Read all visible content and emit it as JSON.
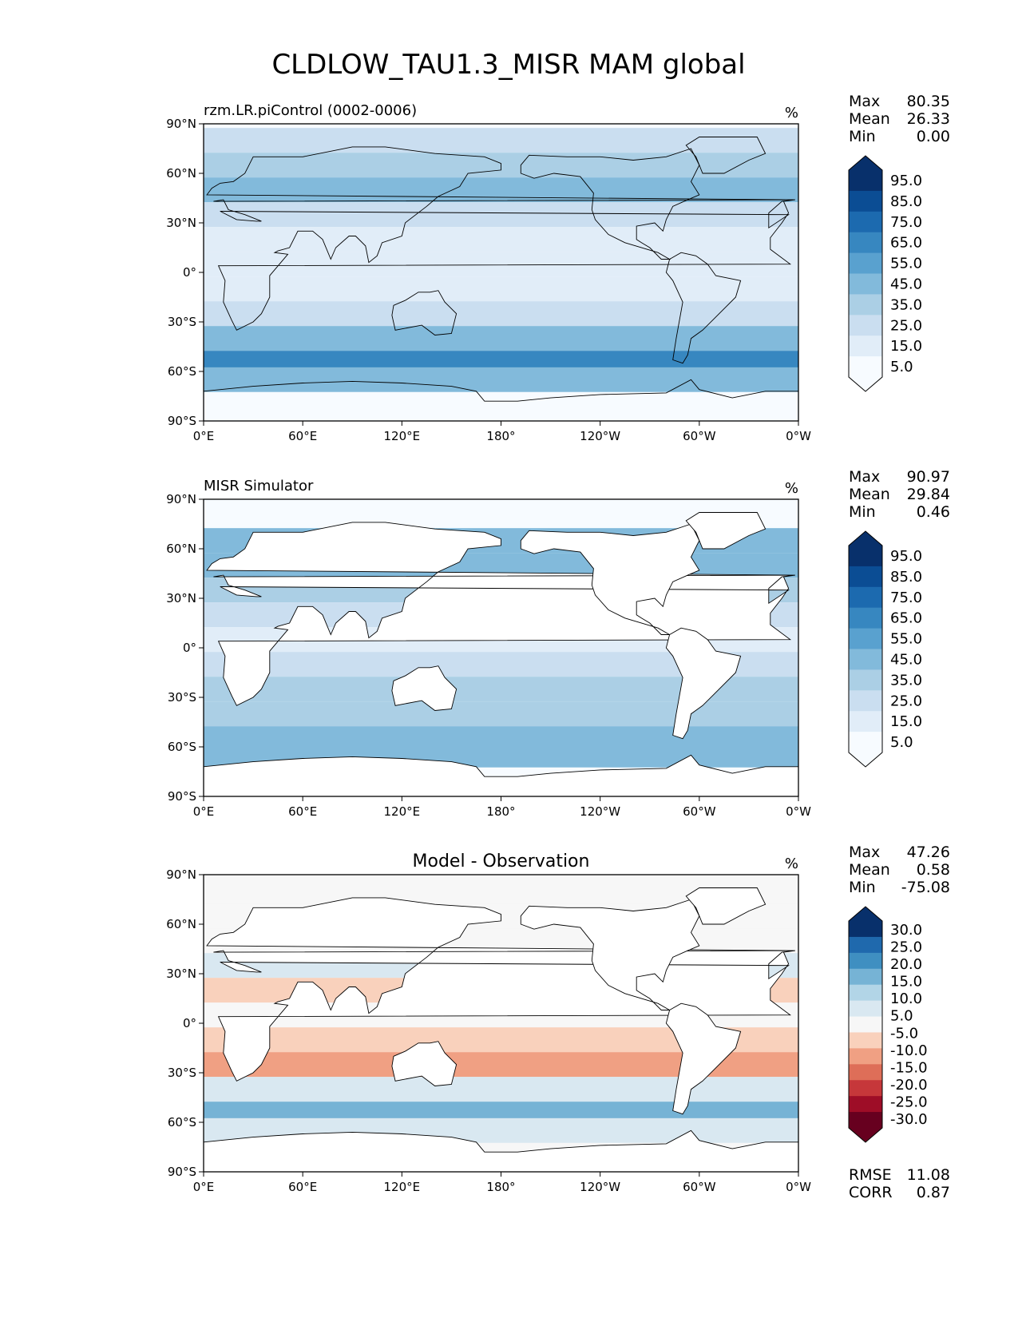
{
  "figure_title": "CLDLOW_TAU1.3_MISR MAM global",
  "colors": {
    "blues": [
      "#f7fbff",
      "#e1edf8",
      "#cadef0",
      "#abcfe5",
      "#82badb",
      "#59a1cf",
      "#3787c0",
      "#1c6aaf",
      "#0b4d94",
      "#08306b"
    ],
    "diff": [
      "#67001f",
      "#9e0d27",
      "#c6373a",
      "#de6e58",
      "#f0a083",
      "#f9d1bc",
      "#f7f7f7",
      "#d9e8f1",
      "#b2d5e7",
      "#76b3d5",
      "#3f8fc1",
      "#1f69ad",
      "#08306b"
    ],
    "land_line": "#000000"
  },
  "chart_data": [
    {
      "type": "heatmap",
      "panel_title": "rzm.LR.piControl (0002-0006)",
      "units": "%",
      "stats": [
        {
          "label": "Max",
          "value": "80.35"
        },
        {
          "label": "Mean",
          "value": "26.33"
        },
        {
          "label": "Min",
          "value": "0.00"
        }
      ],
      "colorbar_levels": [
        "95.0",
        "85.0",
        "75.0",
        "65.0",
        "55.0",
        "45.0",
        "35.0",
        "25.0",
        "15.0",
        "5.0"
      ],
      "x_ticks": [
        "0°E",
        "60°E",
        "120°E",
        "180°",
        "120°W",
        "60°W",
        "0°W"
      ],
      "y_ticks": [
        "90°N",
        "60°N",
        "30°N",
        "0°",
        "30°S",
        "60°S",
        "90°S"
      ],
      "xlim": [
        0,
        360
      ],
      "ylim": [
        -90,
        90
      ],
      "zones": [
        {
          "lat": 80,
          "value": 28
        },
        {
          "lat": 65,
          "value": 38
        },
        {
          "lat": 50,
          "value": 42
        },
        {
          "lat": 35,
          "value": 22
        },
        {
          "lat": 20,
          "value": 14
        },
        {
          "lat": 5,
          "value": 12
        },
        {
          "lat": -10,
          "value": 16
        },
        {
          "lat": -25,
          "value": 20
        },
        {
          "lat": -40,
          "value": 45
        },
        {
          "lat": -55,
          "value": 62
        },
        {
          "lat": -65,
          "value": 48
        },
        {
          "lat": -80,
          "value": 3
        }
      ]
    },
    {
      "type": "heatmap",
      "panel_title": "MISR Simulator",
      "units": "%",
      "stats": [
        {
          "label": "Max",
          "value": "90.97"
        },
        {
          "label": "Mean",
          "value": "29.84"
        },
        {
          "label": "Min",
          "value": "0.46"
        }
      ],
      "colorbar_levels": [
        "95.0",
        "85.0",
        "75.0",
        "65.0",
        "55.0",
        "45.0",
        "35.0",
        "25.0",
        "15.0",
        "5.0"
      ],
      "x_ticks": [
        "0°E",
        "60°E",
        "120°E",
        "180°",
        "120°W",
        "60°W",
        "0°W"
      ],
      "y_ticks": [
        "90°N",
        "60°N",
        "30°N",
        "0°",
        "30°S",
        "60°S",
        "90°S"
      ],
      "xlim": [
        0,
        360
      ],
      "ylim": [
        -90,
        90
      ],
      "zones": [
        {
          "lat": 80,
          "value": 0
        },
        {
          "lat": 65,
          "value": 45
        },
        {
          "lat": 50,
          "value": 45
        },
        {
          "lat": 35,
          "value": 30
        },
        {
          "lat": 20,
          "value": 22
        },
        {
          "lat": 5,
          "value": 18
        },
        {
          "lat": -10,
          "value": 22
        },
        {
          "lat": -25,
          "value": 30
        },
        {
          "lat": -40,
          "value": 38
        },
        {
          "lat": -55,
          "value": 45
        },
        {
          "lat": -65,
          "value": 40
        },
        {
          "lat": -80,
          "value": 0
        }
      ]
    },
    {
      "type": "heatmap",
      "panel_title": "Model - Observation",
      "units": "%",
      "stats": [
        {
          "label": "Max",
          "value": "47.26"
        },
        {
          "label": "Mean",
          "value": "0.58"
        },
        {
          "label": "Min",
          "value": "-75.08"
        }
      ],
      "colorbar_levels": [
        "30.0",
        "25.0",
        "20.0",
        "15.0",
        "10.0",
        "5.0",
        "-5.0",
        "-10.0",
        "-15.0",
        "-20.0",
        "-25.0",
        "-30.0"
      ],
      "footer_stats": [
        {
          "label": "RMSE",
          "value": "11.08"
        },
        {
          "label": "CORR",
          "value": "0.87"
        }
      ],
      "x_ticks": [
        "0°E",
        "60°E",
        "120°E",
        "180°",
        "120°W",
        "60°W",
        "0°W"
      ],
      "y_ticks": [
        "90°N",
        "60°N",
        "30°N",
        "0°",
        "30°S",
        "60°S",
        "90°S"
      ],
      "xlim": [
        0,
        360
      ],
      "ylim": [
        -90,
        90
      ],
      "zones": [
        {
          "lat": 80,
          "value": 0
        },
        {
          "lat": 65,
          "value": -4
        },
        {
          "lat": 50,
          "value": 3
        },
        {
          "lat": 35,
          "value": 6
        },
        {
          "lat": 20,
          "value": -6
        },
        {
          "lat": 5,
          "value": -2
        },
        {
          "lat": -10,
          "value": -7
        },
        {
          "lat": -25,
          "value": -10
        },
        {
          "lat": -40,
          "value": 8
        },
        {
          "lat": -55,
          "value": 18
        },
        {
          "lat": -65,
          "value": 10
        },
        {
          "lat": -80,
          "value": 0
        }
      ]
    }
  ]
}
